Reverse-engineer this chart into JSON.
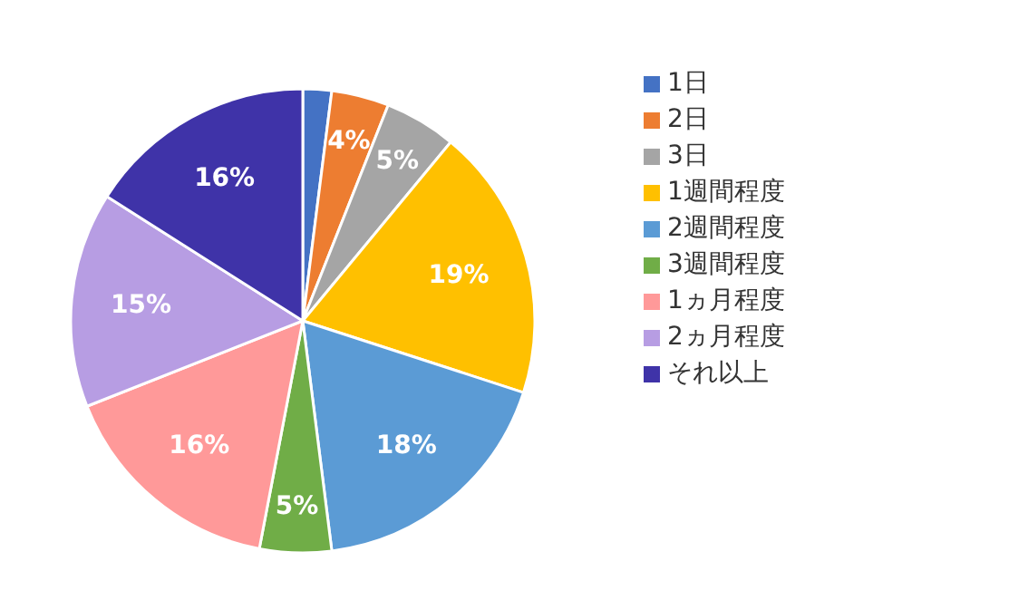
{
  "chart_data": {
    "type": "pie",
    "categories": [
      "1日",
      "2日",
      "3日",
      "1週間程度",
      "2週間程度",
      "3週間程度",
      "1ヵ月程度",
      "2ヵ月程度",
      "それ以上"
    ],
    "values": [
      2,
      4,
      5,
      19,
      18,
      5,
      16,
      15,
      16
    ],
    "value_labels": [
      null,
      "4%",
      "5%",
      "19%",
      "18%",
      "5%",
      "16%",
      "15%",
      "16%"
    ],
    "colors": [
      "#4472c4",
      "#ed7d31",
      "#a5a5a5",
      "#ffc000",
      "#5b9bd5",
      "#70ad47",
      "#ff9999",
      "#b79de3",
      "#3f33a8"
    ],
    "legend": "right"
  }
}
